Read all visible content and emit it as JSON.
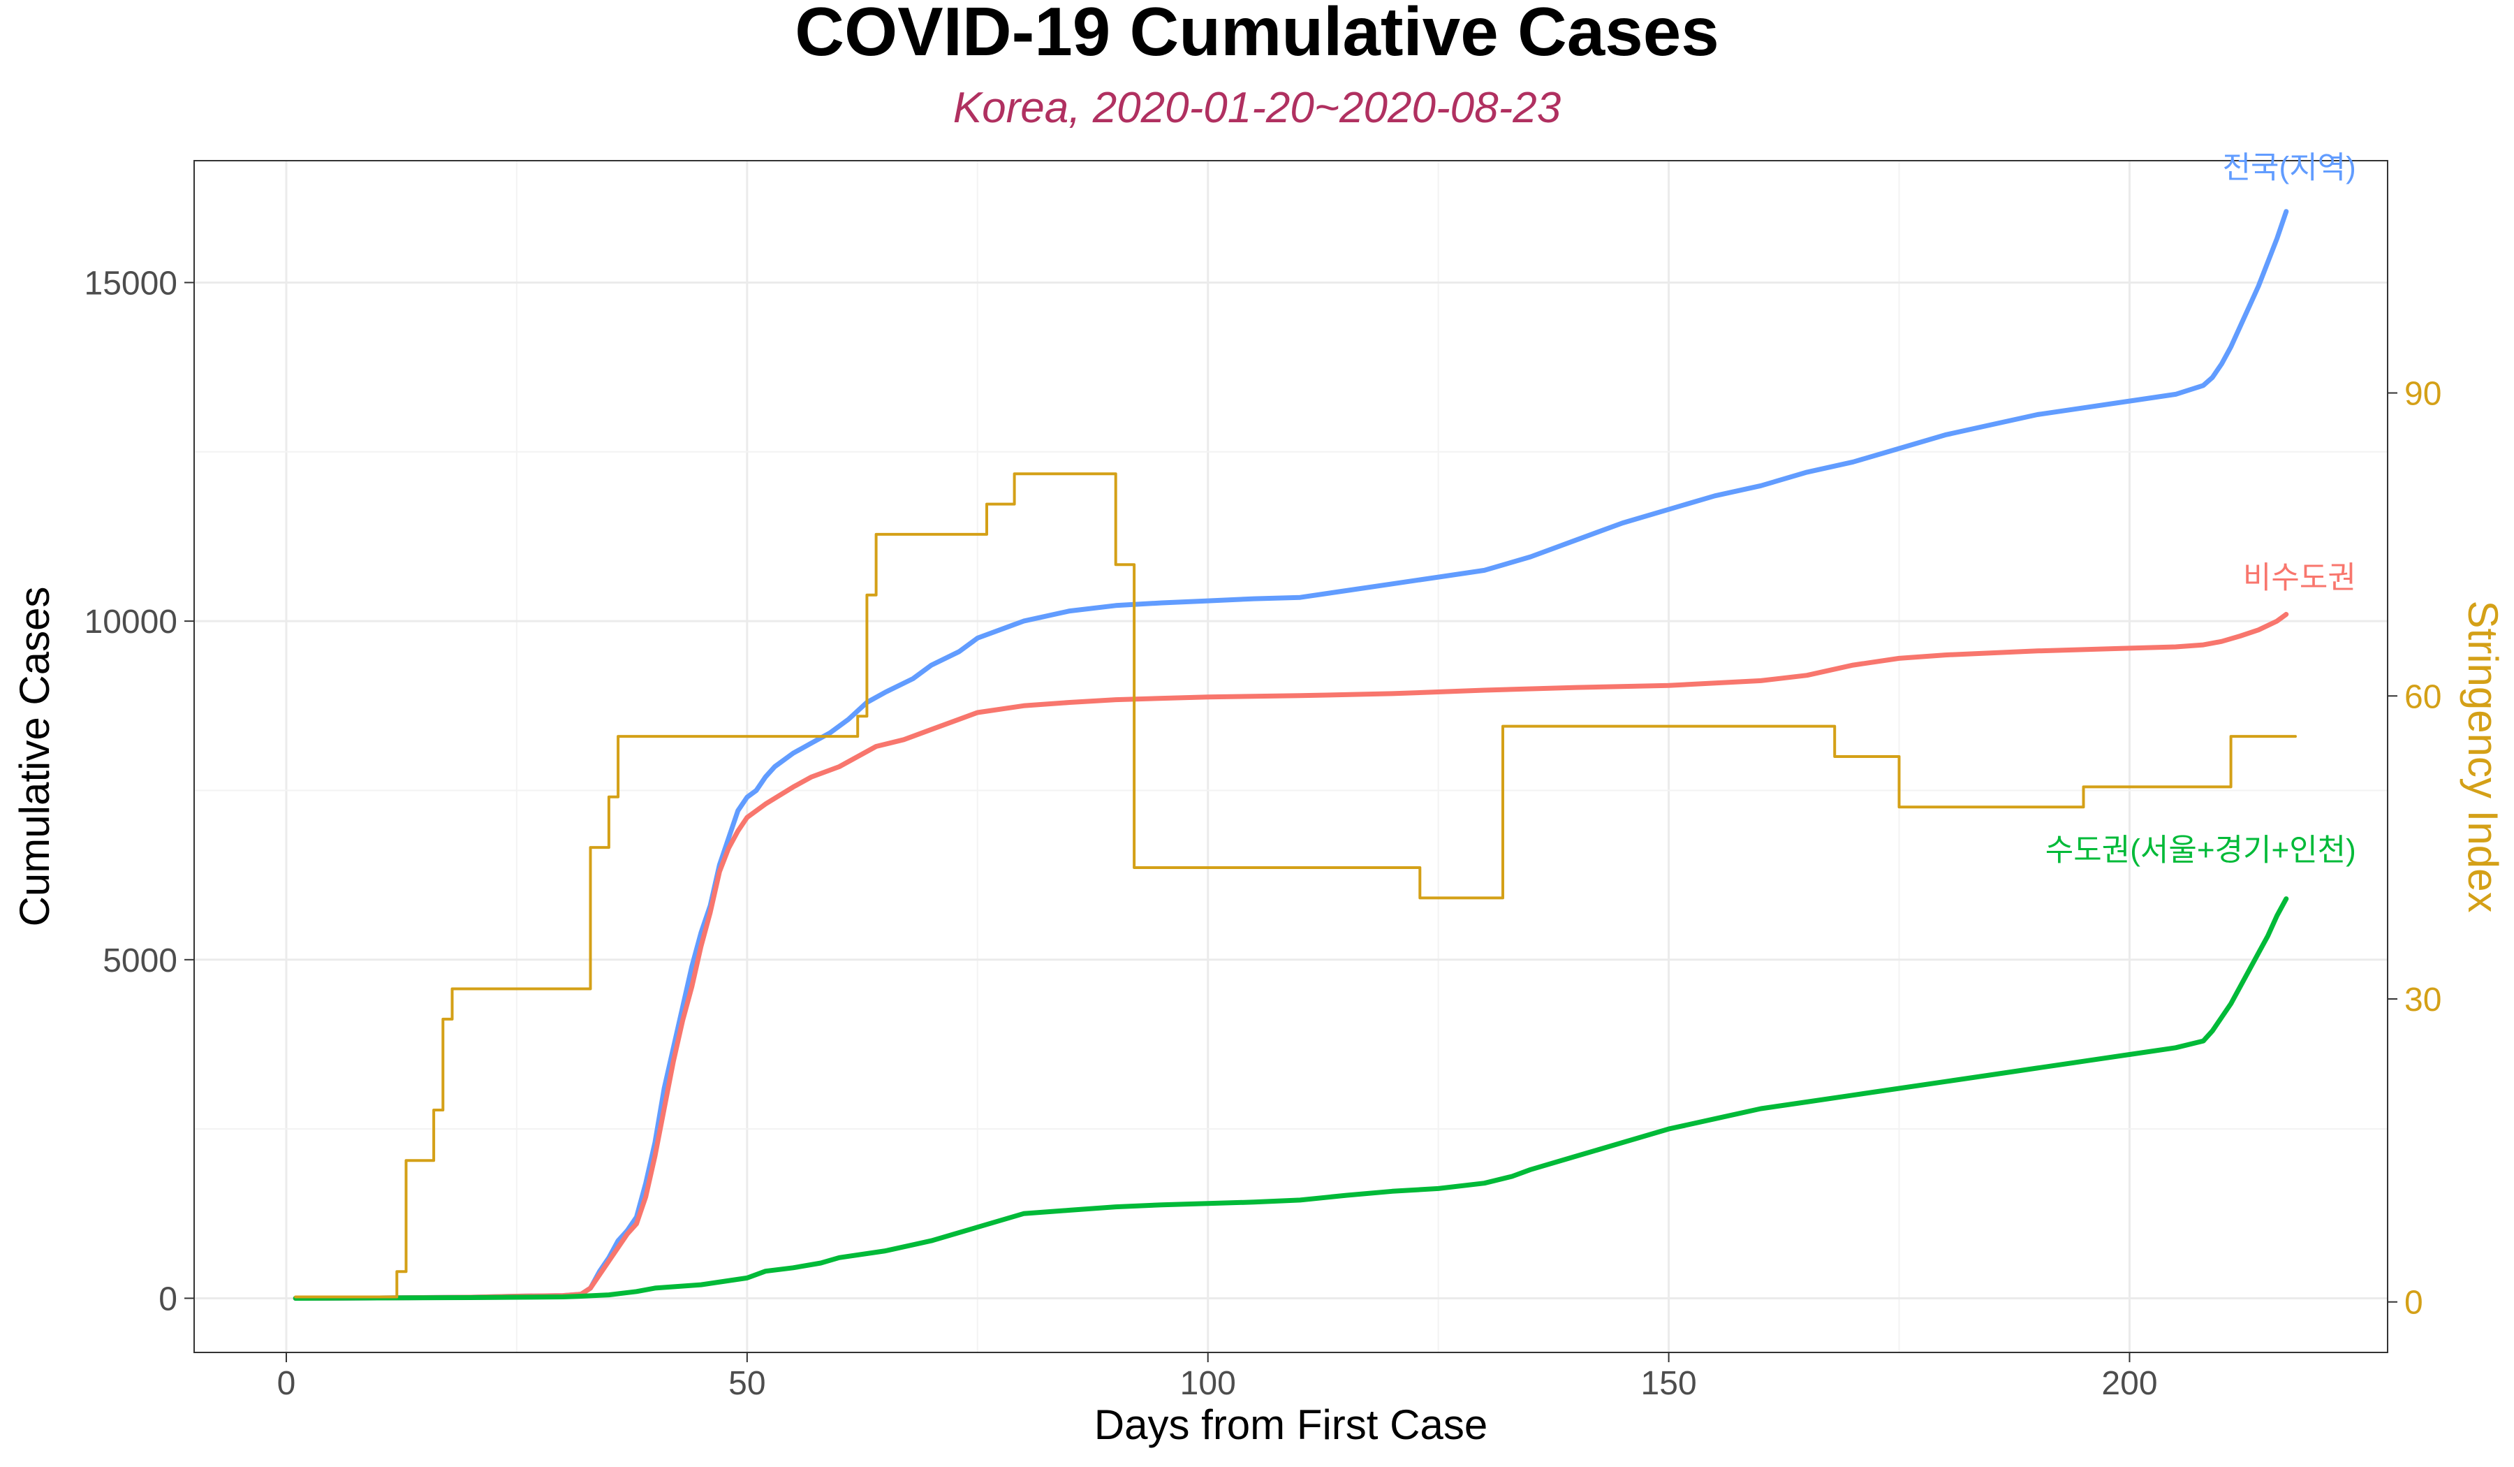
{
  "chart_data": {
    "type": "line",
    "title": "COVID-19 Cumulative Cases",
    "subtitle": "Korea, 2020-01-20~2020-08-23",
    "xlabel": "Days from First Case",
    "ylabel": "Cumulative Cases",
    "y2label": "Stringency Index",
    "xlim": [
      -10,
      228
    ],
    "ylim": [
      -800,
      16800
    ],
    "y2lim": [
      -5,
      113
    ],
    "xticks": [
      0,
      50,
      100,
      150,
      200
    ],
    "yticks": [
      0,
      5000,
      10000,
      15000
    ],
    "y2ticks": [
      0,
      30,
      60,
      90
    ],
    "grid": true,
    "colors": {
      "subtitle": "#b03060",
      "stringency": "#d4a017",
      "nationwide": "#619cff",
      "non_capital": "#f8766d",
      "capital": "#00ba38"
    },
    "series": [
      {
        "name": "전국(지역)",
        "axis": "left",
        "color": "#619cff",
        "x": [
          1,
          10,
          20,
          25,
          30,
          32,
          33,
          34,
          35,
          36,
          37,
          38,
          39,
          40,
          41,
          42,
          43,
          44,
          45,
          46,
          47,
          48,
          49,
          50,
          51,
          52,
          53,
          55,
          57,
          59,
          61,
          63,
          65,
          68,
          70,
          73,
          75,
          78,
          80,
          85,
          90,
          95,
          100,
          105,
          110,
          115,
          120,
          125,
          130,
          135,
          140,
          145,
          150,
          155,
          160,
          165,
          170,
          175,
          180,
          185,
          190,
          195,
          200,
          205,
          208,
          209,
          210,
          211,
          212,
          213,
          214,
          215,
          216,
          217
        ],
        "y": [
          0,
          5,
          15,
          30,
          40,
          60,
          150,
          400,
          600,
          850,
          1000,
          1200,
          1700,
          2300,
          3100,
          3700,
          4300,
          4900,
          5400,
          5800,
          6400,
          6800,
          7200,
          7400,
          7500,
          7700,
          7850,
          8050,
          8200,
          8350,
          8550,
          8800,
          8950,
          9150,
          9350,
          9550,
          9750,
          9900,
          10000,
          10150,
          10230,
          10270,
          10300,
          10330,
          10350,
          10450,
          10550,
          10650,
          10750,
          10950,
          11200,
          11450,
          11650,
          11850,
          12000,
          12200,
          12350,
          12550,
          12750,
          12900,
          13050,
          13150,
          13250,
          13350,
          13480,
          13600,
          13800,
          14050,
          14350,
          14650,
          14950,
          15300,
          15650,
          16050
        ]
      },
      {
        "name": "비수도권",
        "axis": "left",
        "color": "#f8766d",
        "x": [
          1,
          10,
          20,
          25,
          30,
          32,
          33,
          34,
          35,
          36,
          37,
          38,
          39,
          40,
          41,
          42,
          43,
          44,
          45,
          46,
          47,
          48,
          49,
          50,
          52,
          55,
          57,
          60,
          62,
          64,
          67,
          70,
          73,
          75,
          80,
          85,
          90,
          95,
          100,
          110,
          120,
          130,
          140,
          150,
          160,
          165,
          170,
          175,
          180,
          190,
          200,
          205,
          208,
          210,
          212,
          214,
          216,
          217
        ],
        "y": [
          0,
          5,
          15,
          30,
          40,
          60,
          150,
          350,
          550,
          750,
          950,
          1100,
          1500,
          2100,
          2800,
          3500,
          4100,
          4600,
          5200,
          5700,
          6300,
          6650,
          6900,
          7100,
          7300,
          7550,
          7700,
          7850,
          8000,
          8150,
          8250,
          8400,
          8550,
          8650,
          8750,
          8800,
          8840,
          8860,
          8880,
          8900,
          8930,
          8980,
          9020,
          9050,
          9120,
          9200,
          9350,
          9450,
          9500,
          9560,
          9600,
          9620,
          9650,
          9700,
          9780,
          9870,
          10000,
          10100
        ]
      },
      {
        "name": "수도권(서울+경기+인천)",
        "axis": "left",
        "color": "#00ba38",
        "x": [
          1,
          10,
          20,
          25,
          30,
          32,
          35,
          38,
          40,
          45,
          50,
          52,
          55,
          58,
          60,
          65,
          70,
          75,
          80,
          85,
          90,
          95,
          100,
          105,
          110,
          115,
          120,
          125,
          130,
          133,
          135,
          140,
          145,
          150,
          155,
          160,
          165,
          170,
          175,
          180,
          185,
          190,
          195,
          200,
          205,
          208,
          209,
          210,
          211,
          212,
          213,
          214,
          215,
          216,
          217
        ],
        "y": [
          0,
          5,
          10,
          15,
          20,
          30,
          50,
          100,
          150,
          200,
          300,
          400,
          450,
          520,
          600,
          700,
          850,
          1050,
          1250,
          1300,
          1350,
          1380,
          1400,
          1420,
          1450,
          1520,
          1580,
          1620,
          1700,
          1800,
          1900,
          2100,
          2300,
          2500,
          2650,
          2800,
          2900,
          3000,
          3100,
          3200,
          3300,
          3400,
          3500,
          3600,
          3700,
          3800,
          3950,
          4150,
          4350,
          4600,
          4850,
          5100,
          5350,
          5650,
          5900
        ]
      },
      {
        "name": "Stringency Index",
        "axis": "right",
        "color": "#d4a017",
        "step": true,
        "x": [
          1,
          12,
          13,
          14,
          16,
          17,
          18,
          33,
          35,
          36,
          37,
          62,
          63,
          64,
          76,
          77,
          79,
          90,
          92,
          123,
          132,
          168,
          175,
          195,
          211,
          218
        ],
        "y": [
          0.5,
          3,
          14,
          14,
          19,
          28,
          31,
          45,
          50,
          56,
          56,
          58,
          70,
          76,
          79,
          79,
          82,
          73,
          43,
          40,
          57,
          54,
          49,
          51,
          56,
          56
        ]
      }
    ]
  }
}
